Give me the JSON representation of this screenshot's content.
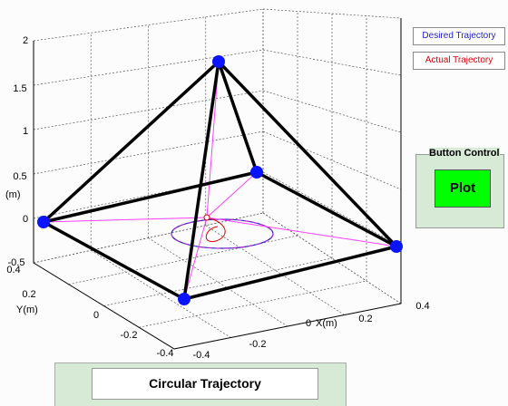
{
  "axes": {
    "z_ticks": [
      "2",
      "1.5",
      "1",
      "0.5",
      "0",
      "-0.5"
    ],
    "z_label": "(m)",
    "y_ticks": [
      "0.4",
      "0.2",
      "0",
      "-0.2",
      "-0.4"
    ],
    "y_label": "Y(m)",
    "x_ticks": [
      "-0.4",
      "-0.2",
      "0",
      "0.2",
      "0.4"
    ],
    "x_label": "X(m)"
  },
  "legend": {
    "items": [
      "Desired Trajectory",
      "Actual Trajectory"
    ]
  },
  "button_panel": {
    "title": "Button Control",
    "button": "Plot"
  },
  "bottom_panel": {
    "title": "Circular Trajectory"
  }
}
